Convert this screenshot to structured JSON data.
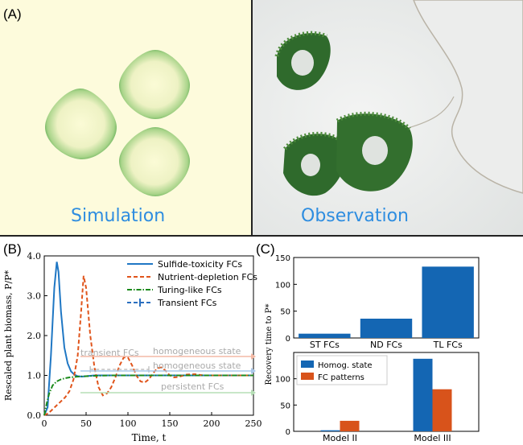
{
  "panel_a": {
    "label": "(A)",
    "left_caption": "Simulation",
    "right_caption": "Observation"
  },
  "panel_b": {
    "label": "(B)",
    "annotations": {
      "transient": "transient FCs",
      "homog_top": "homogeneous state",
      "homog_mid": "homogeneous state",
      "persistent": "persistent FCs"
    },
    "colors": {
      "sulfide": "#1f77c4",
      "nutrient": "#e0541b",
      "turing": "#1b8a1b",
      "transient": "#2a6fbf"
    }
  },
  "panel_c": {
    "label": "(C)"
  },
  "chart_data": [
    {
      "type": "line",
      "xlabel": "Time, t",
      "ylabel": "Rescaled plant biomass, P/P*",
      "xlim": [
        0,
        250
      ],
      "ylim": [
        0,
        4
      ],
      "xticks": [
        "0",
        "50",
        "100",
        "150",
        "200",
        "250"
      ],
      "yticks": [
        "0.0",
        "1.0",
        "2.0",
        "3.0",
        "4.0"
      ],
      "legend_position": "top-right",
      "series": [
        {
          "name": "Sulfide-toxicity FCs",
          "style": "solid",
          "x": [
            0,
            4,
            8,
            12,
            15,
            17,
            20,
            24,
            28,
            32,
            36,
            40,
            45,
            50,
            55,
            60,
            70,
            80,
            100,
            150,
            200,
            250
          ],
          "y": [
            0,
            0.2,
            1.5,
            3.2,
            3.85,
            3.6,
            2.6,
            1.7,
            1.3,
            1.1,
            1.02,
            0.98,
            0.97,
            0.98,
            0.99,
            1.0,
            1.0,
            1.0,
            1.0,
            1.0,
            1.0,
            1.0
          ]
        },
        {
          "name": "Nutrient-depletion FCs",
          "style": "dashed",
          "x": [
            0,
            5,
            10,
            15,
            20,
            25,
            30,
            35,
            40,
            44,
            47,
            50,
            55,
            60,
            65,
            70,
            75,
            80,
            85,
            90,
            95,
            100,
            105,
            110,
            115,
            120,
            125,
            130,
            135,
            140,
            145,
            150,
            155,
            160,
            170,
            180,
            190,
            200,
            250
          ],
          "y": [
            0,
            0.05,
            0.15,
            0.25,
            0.35,
            0.45,
            0.6,
            0.9,
            1.5,
            2.6,
            3.5,
            3.2,
            2.0,
            1.2,
            0.7,
            0.5,
            0.55,
            0.7,
            0.95,
            1.25,
            1.45,
            1.45,
            1.25,
            1.0,
            0.85,
            0.82,
            0.9,
            1.05,
            1.18,
            1.2,
            1.12,
            1.0,
            0.95,
            0.96,
            1.02,
            1.03,
            1.0,
            1.0,
            1.0
          ]
        },
        {
          "name": "Turing-like FCs",
          "style": "dashdot",
          "x": [
            0,
            3,
            6,
            10,
            15,
            20,
            25,
            30,
            40,
            50,
            60,
            80,
            100,
            150,
            200,
            250
          ],
          "y": [
            0,
            0.3,
            0.55,
            0.75,
            0.85,
            0.9,
            0.93,
            0.95,
            0.97,
            0.98,
            0.99,
            1.0,
            1.0,
            1.0,
            1.0,
            1.0
          ]
        },
        {
          "name": "Transient FCs",
          "style": "dashed-errorbar",
          "x": [
            55,
            125
          ],
          "y": [
            1.15,
            1.15
          ]
        }
      ]
    },
    {
      "type": "bar",
      "title": "",
      "categories": [
        "ST FCs",
        "ND FCs",
        "TL FCs"
      ],
      "values": [
        8,
        36,
        133
      ],
      "ylabel": "Recovery time to P*",
      "ylim": [
        0,
        150
      ],
      "yticks": [
        "0",
        "50",
        "100",
        "150"
      ]
    },
    {
      "type": "bar",
      "categories": [
        "Model II",
        "Model III"
      ],
      "series": [
        {
          "name": "Homog. state",
          "values": [
            2,
            138
          ]
        },
        {
          "name": "FC patterns",
          "values": [
            20,
            80
          ]
        }
      ],
      "ylim": [
        0,
        150
      ],
      "yticks": [
        "0",
        "50",
        "100"
      ],
      "legend_position": "top-left"
    }
  ]
}
